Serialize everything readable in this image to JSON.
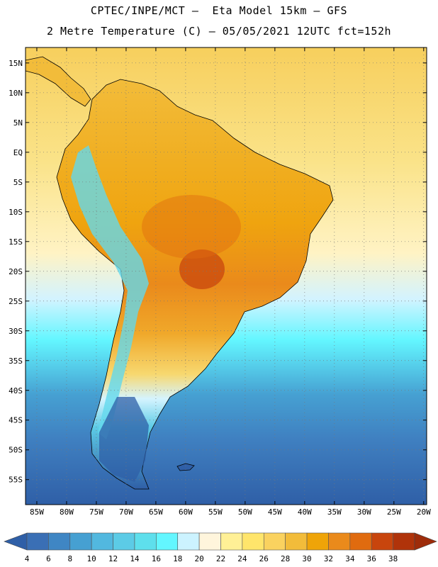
{
  "header": {
    "line1": "CPTEC/INPE/MCT –  Eta Model 15km – GFS",
    "line2": "2 Metre Temperature (C) – 05/05/2021 12UTC fct=152h"
  },
  "map": {
    "latitude_labels": [
      "15N",
      "10N",
      "5N",
      "EQ",
      "5S",
      "10S",
      "15S",
      "20S",
      "25S",
      "30S",
      "35S",
      "40S",
      "45S",
      "50S",
      "55S"
    ],
    "longitude_labels": [
      "85W",
      "80W",
      "75W",
      "70W",
      "65W",
      "60W",
      "55W",
      "50W",
      "45W",
      "40W",
      "35W",
      "30W",
      "25W",
      "20W"
    ],
    "latitudes": [
      15,
      10,
      5,
      0,
      -5,
      -10,
      -15,
      -20,
      -25,
      -30,
      -35,
      -40,
      -45,
      -50,
      -55
    ],
    "longitudes": [
      -85,
      -80,
      -75,
      -70,
      -65,
      -60,
      -55,
      -50,
      -45,
      -40,
      -35,
      -30,
      -25,
      -20
    ]
  },
  "colorbar": {
    "labels": [
      "4",
      "6",
      "8",
      "10",
      "12",
      "14",
      "16",
      "18",
      "20",
      "22",
      "24",
      "26",
      "28",
      "30",
      "32",
      "34",
      "36",
      "38"
    ],
    "colors": [
      "#3a6fb5",
      "#3f86c4",
      "#46a0d2",
      "#52b8df",
      "#5ccbe6",
      "#5edfec",
      "#63f6ff",
      "#ccf3ff",
      "#fff5dc",
      "#fff096",
      "#ffe56b",
      "#fad25f",
      "#f2bc3a",
      "#efa408",
      "#ea8a1b",
      "#e06b0f",
      "#c8450d",
      "#b0330a"
    ],
    "low_arrow_color": "#2f5fa7",
    "high_arrow_color": "#9e2c0a"
  }
}
